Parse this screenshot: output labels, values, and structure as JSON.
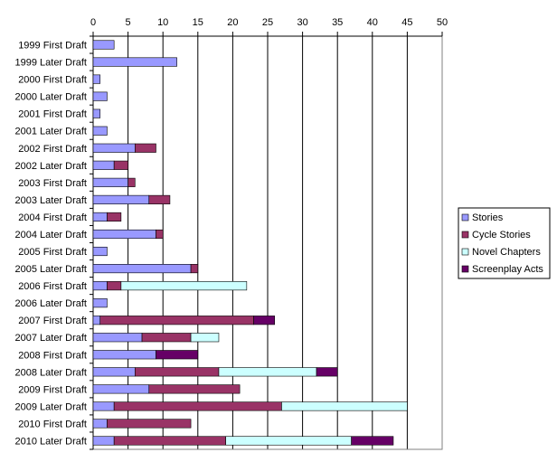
{
  "chart_data": {
    "type": "bar",
    "orientation": "horizontal",
    "stacked": true,
    "x_axis_position": "top",
    "xlim": [
      0,
      50
    ],
    "x_ticks": [
      0,
      5,
      10,
      15,
      20,
      25,
      30,
      35,
      40,
      45,
      50
    ],
    "grid": true,
    "legend_position": "right",
    "categories": [
      "1999 First Draft",
      "1999 Later Draft",
      "2000 First Draft",
      "2000 Later Draft",
      "2001 First Draft",
      "2001 Later Draft",
      "2002 First Draft",
      "2002 Later Draft",
      "2003 First Draft",
      "2003 Later Draft",
      "2004 First Draft",
      "2004 Later Draft",
      "2005 First Draft",
      "2005 Later Draft",
      "2006 First Draft",
      "2006 Later Draft",
      "2007 First Draft",
      "2007 Later Draft",
      "2008 First Draft",
      "2008 Later Draft",
      "2009 First Draft",
      "2009 Later Draft",
      "2010 First Draft",
      "2010 Later Draft"
    ],
    "series": [
      {
        "name": "Stories",
        "color": "#9999ff",
        "values": [
          3,
          12,
          1,
          2,
          1,
          2,
          6,
          3,
          5,
          8,
          2,
          9,
          2,
          14,
          2,
          2,
          1,
          7,
          9,
          6,
          8,
          3,
          2,
          3
        ]
      },
      {
        "name": "Cycle Stories",
        "color": "#993366",
        "values": [
          0,
          0,
          0,
          0,
          0,
          0,
          3,
          2,
          1,
          3,
          2,
          1,
          0,
          1,
          2,
          0,
          22,
          7,
          0,
          12,
          13,
          24,
          12,
          16
        ]
      },
      {
        "name": "Novel Chapters",
        "color": "#ccffff",
        "values": [
          0,
          0,
          0,
          0,
          0,
          0,
          0,
          0,
          0,
          0,
          0,
          0,
          0,
          0,
          18,
          0,
          0,
          4,
          0,
          14,
          0,
          18,
          0,
          18
        ]
      },
      {
        "name": "Screenplay Acts",
        "color": "#660066",
        "values": [
          0,
          0,
          0,
          0,
          0,
          0,
          0,
          0,
          0,
          0,
          0,
          0,
          0,
          0,
          0,
          0,
          3,
          0,
          6,
          3,
          0,
          0,
          0,
          6
        ]
      }
    ]
  }
}
